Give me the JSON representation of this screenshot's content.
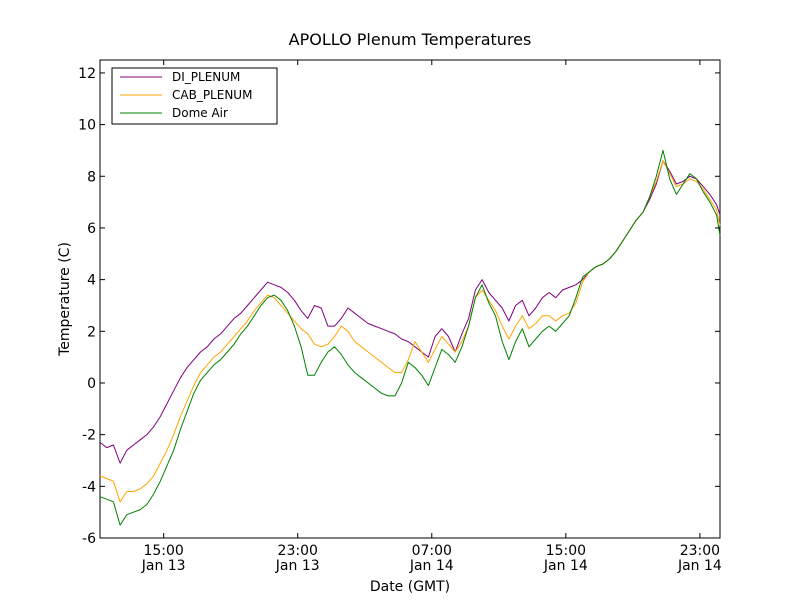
{
  "chart_data": {
    "type": "line",
    "title": "APOLLO Plenum Temperatures",
    "xlabel": "Date (GMT)",
    "ylabel": "Temperature (C)",
    "ylim": [
      -6,
      12.5
    ],
    "xlim_hours_since_jan13_0000": [
      11.2,
      48.2
    ],
    "yticks": [
      {
        "value": -6,
        "label": "-6"
      },
      {
        "value": -4,
        "label": "-4"
      },
      {
        "value": -2,
        "label": "-2"
      },
      {
        "value": 0,
        "label": "0"
      },
      {
        "value": 2,
        "label": "2"
      },
      {
        "value": 4,
        "label": "4"
      },
      {
        "value": 6,
        "label": "6"
      },
      {
        "value": 8,
        "label": "8"
      },
      {
        "value": 10,
        "label": "10"
      },
      {
        "value": 12,
        "label": "12"
      }
    ],
    "xticks": [
      {
        "hours": 15,
        "time": "15:00",
        "date": "Jan 13"
      },
      {
        "hours": 23,
        "time": "23:00",
        "date": "Jan 13"
      },
      {
        "hours": 31,
        "time": "07:00",
        "date": "Jan 14"
      },
      {
        "hours": 39,
        "time": "15:00",
        "date": "Jan 14"
      },
      {
        "hours": 47,
        "time": "23:00",
        "date": "Jan 14"
      }
    ],
    "legend_position": "top-left",
    "series": [
      {
        "name": "DI_PLENUM",
        "color": "#800080",
        "x": [
          11.2,
          11.6,
          12.0,
          12.4,
          12.8,
          13.2,
          13.6,
          14.0,
          14.4,
          14.8,
          15.2,
          15.6,
          16.0,
          16.4,
          16.8,
          17.2,
          17.6,
          18.0,
          18.4,
          18.8,
          19.2,
          19.6,
          20.0,
          20.4,
          20.8,
          21.2,
          21.6,
          22.0,
          22.4,
          22.8,
          23.2,
          23.6,
          24.0,
          24.4,
          24.8,
          25.2,
          25.6,
          26.0,
          26.4,
          26.8,
          27.2,
          27.6,
          28.0,
          28.4,
          28.8,
          29.2,
          29.6,
          30.0,
          30.4,
          30.8,
          31.2,
          31.6,
          32.0,
          32.4,
          32.8,
          33.2,
          33.6,
          34.0,
          34.4,
          34.8,
          35.2,
          35.6,
          36.0,
          36.4,
          36.8,
          37.2,
          37.6,
          38.0,
          38.4,
          38.8,
          39.2,
          39.6,
          40.0,
          40.4,
          40.8,
          41.2,
          41.6,
          42.0,
          42.4,
          42.8,
          43.2,
          43.6,
          44.0,
          44.4,
          44.8,
          45.2,
          45.6,
          46.0,
          46.4,
          46.8,
          47.2,
          47.6,
          48.0,
          48.2
        ],
        "values": [
          -2.3,
          -2.5,
          -2.4,
          -3.1,
          -2.6,
          -2.4,
          -2.2,
          -2.0,
          -1.7,
          -1.3,
          -0.8,
          -0.3,
          0.2,
          0.6,
          0.9,
          1.2,
          1.4,
          1.7,
          1.9,
          2.2,
          2.5,
          2.7,
          3.0,
          3.3,
          3.6,
          3.9,
          3.8,
          3.7,
          3.5,
          3.2,
          2.8,
          2.5,
          3.0,
          2.9,
          2.2,
          2.2,
          2.5,
          2.9,
          2.7,
          2.5,
          2.3,
          2.2,
          2.1,
          2.0,
          1.9,
          1.7,
          1.6,
          1.4,
          1.2,
          1.0,
          1.8,
          2.1,
          1.8,
          1.2,
          1.9,
          2.5,
          3.6,
          4.0,
          3.5,
          3.2,
          2.9,
          2.4,
          3.0,
          3.2,
          2.6,
          2.9,
          3.3,
          3.5,
          3.3,
          3.6,
          3.7,
          3.8,
          4.0,
          4.3,
          4.5,
          4.6,
          4.8,
          5.1,
          5.5,
          5.9,
          6.3,
          6.6,
          7.1,
          7.7,
          8.6,
          8.2,
          7.7,
          7.8,
          8.0,
          7.9,
          7.6,
          7.3,
          6.9,
          6.5
        ]
      },
      {
        "name": "CAB_PLENUM",
        "color": "#FFA500",
        "x": [
          11.2,
          11.6,
          12.0,
          12.4,
          12.8,
          13.2,
          13.6,
          14.0,
          14.4,
          14.8,
          15.2,
          15.6,
          16.0,
          16.4,
          16.8,
          17.2,
          17.6,
          18.0,
          18.4,
          18.8,
          19.2,
          19.6,
          20.0,
          20.4,
          20.8,
          21.2,
          21.6,
          22.0,
          22.4,
          22.8,
          23.2,
          23.6,
          24.0,
          24.4,
          24.8,
          25.2,
          25.6,
          26.0,
          26.4,
          26.8,
          27.2,
          27.6,
          28.0,
          28.4,
          28.8,
          29.2,
          29.6,
          30.0,
          30.4,
          30.8,
          31.2,
          31.6,
          32.0,
          32.4,
          32.8,
          33.2,
          33.6,
          34.0,
          34.4,
          34.8,
          35.2,
          35.6,
          36.0,
          36.4,
          36.8,
          37.2,
          37.6,
          38.0,
          38.4,
          38.8,
          39.2,
          39.6,
          40.0,
          40.4,
          40.8,
          41.2,
          41.6,
          42.0,
          42.4,
          42.8,
          43.2,
          43.6,
          44.0,
          44.4,
          44.8,
          45.2,
          45.6,
          46.0,
          46.4,
          46.8,
          47.2,
          47.6,
          48.0,
          48.2
        ],
        "values": [
          -3.6,
          -3.7,
          -3.8,
          -4.6,
          -4.2,
          -4.2,
          -4.1,
          -3.9,
          -3.6,
          -3.1,
          -2.6,
          -2.0,
          -1.3,
          -0.7,
          -0.1,
          0.4,
          0.7,
          1.0,
          1.2,
          1.5,
          1.8,
          2.1,
          2.4,
          2.8,
          3.1,
          3.4,
          3.3,
          3.0,
          2.7,
          2.4,
          2.1,
          1.9,
          1.5,
          1.4,
          1.5,
          1.8,
          2.2,
          2.0,
          1.6,
          1.4,
          1.2,
          1.0,
          0.8,
          0.6,
          0.4,
          0.4,
          0.9,
          1.6,
          1.2,
          0.8,
          1.3,
          1.8,
          1.5,
          1.2,
          1.6,
          2.2,
          3.3,
          3.6,
          3.2,
          2.8,
          2.2,
          1.7,
          2.2,
          2.6,
          2.1,
          2.3,
          2.6,
          2.6,
          2.4,
          2.6,
          2.7,
          3.1,
          3.9,
          4.3,
          4.5,
          4.6,
          4.8,
          5.1,
          5.5,
          5.9,
          6.3,
          6.6,
          7.2,
          7.8,
          8.6,
          8.1,
          7.6,
          7.7,
          7.9,
          7.8,
          7.5,
          7.1,
          6.7,
          6.1
        ]
      },
      {
        "name": "Dome Air",
        "color": "#008000",
        "x": [
          11.2,
          11.6,
          12.0,
          12.4,
          12.8,
          13.2,
          13.6,
          14.0,
          14.4,
          14.8,
          15.2,
          15.6,
          16.0,
          16.4,
          16.8,
          17.2,
          17.6,
          18.0,
          18.4,
          18.8,
          19.2,
          19.6,
          20.0,
          20.4,
          20.8,
          21.2,
          21.6,
          22.0,
          22.4,
          22.8,
          23.2,
          23.6,
          24.0,
          24.4,
          24.8,
          25.2,
          25.6,
          26.0,
          26.4,
          26.8,
          27.2,
          27.6,
          28.0,
          28.4,
          28.8,
          29.2,
          29.6,
          30.0,
          30.4,
          30.8,
          31.2,
          31.6,
          32.0,
          32.4,
          32.8,
          33.2,
          33.6,
          34.0,
          34.4,
          34.8,
          35.2,
          35.6,
          36.0,
          36.4,
          36.8,
          37.2,
          37.6,
          38.0,
          38.4,
          38.8,
          39.2,
          39.6,
          40.0,
          40.4,
          40.8,
          41.2,
          41.6,
          42.0,
          42.4,
          42.8,
          43.2,
          43.6,
          44.0,
          44.4,
          44.8,
          45.2,
          45.6,
          46.0,
          46.4,
          46.8,
          47.2,
          47.6,
          48.0,
          48.2
        ],
        "values": [
          -4.4,
          -4.5,
          -4.6,
          -5.5,
          -5.1,
          -5.0,
          -4.9,
          -4.7,
          -4.3,
          -3.8,
          -3.2,
          -2.6,
          -1.8,
          -1.1,
          -0.4,
          0.1,
          0.4,
          0.7,
          0.9,
          1.2,
          1.5,
          1.9,
          2.2,
          2.6,
          3.0,
          3.3,
          3.4,
          3.2,
          2.8,
          2.2,
          1.4,
          0.3,
          0.3,
          0.8,
          1.2,
          1.4,
          1.1,
          0.7,
          0.4,
          0.2,
          0.0,
          -0.2,
          -0.4,
          -0.5,
          -0.5,
          0.0,
          0.8,
          0.6,
          0.3,
          -0.1,
          0.6,
          1.3,
          1.1,
          0.8,
          1.4,
          2.2,
          3.3,
          3.8,
          3.1,
          2.6,
          1.6,
          0.9,
          1.6,
          2.1,
          1.4,
          1.7,
          2.0,
          2.2,
          2.0,
          2.3,
          2.6,
          3.3,
          4.1,
          4.3,
          4.5,
          4.6,
          4.8,
          5.1,
          5.5,
          5.9,
          6.3,
          6.6,
          7.2,
          8.0,
          9.0,
          7.9,
          7.3,
          7.7,
          8.1,
          7.9,
          7.4,
          7.0,
          6.5,
          5.7
        ]
      }
    ]
  }
}
